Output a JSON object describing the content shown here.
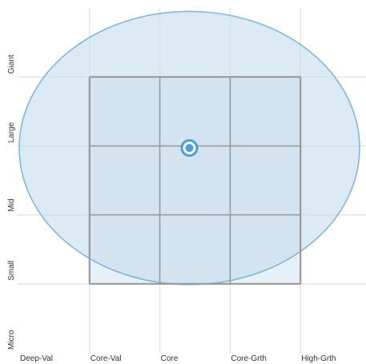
{
  "chart_data": {
    "type": "scatter",
    "x_categories": [
      "Deep-Val",
      "Core-Val",
      "Core",
      "Core-Grth",
      "High-Grth"
    ],
    "y_categories": [
      "Micro",
      "Small",
      "Mid",
      "Large",
      "Giant"
    ],
    "xlim": [
      0,
      5
    ],
    "ylim": [
      0,
      5
    ],
    "grid": true,
    "box": {
      "x": [
        1,
        4
      ],
      "y": [
        1,
        4
      ]
    },
    "ellipse": {
      "center": [
        2.42,
        2.97
      ],
      "x_radius": 2.42,
      "y_radius": 1.98
    },
    "point": {
      "x": 2.42,
      "y": 2.97
    },
    "colors": {
      "ellipse_fill": "#c7ddec",
      "ellipse_stroke": "#7fb8db",
      "box_fill": "#e6f0f8",
      "box_stroke": "#999999",
      "point": "#4a9fd6",
      "grid": "#e4e4e4"
    }
  }
}
